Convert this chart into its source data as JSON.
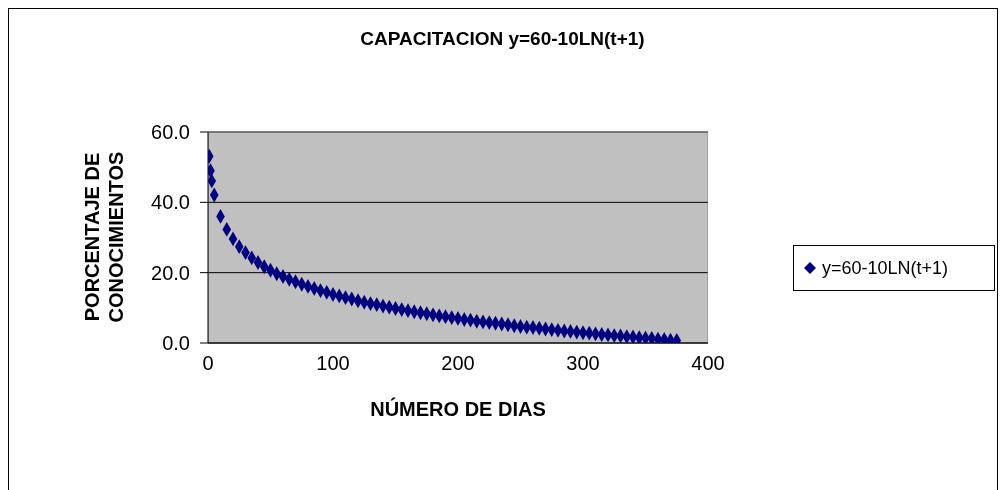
{
  "chart_data": {
    "type": "scatter",
    "title": "CAPACITACION y=60-10LN(t+1)",
    "xlabel": "NÚMERO DE DIAS",
    "ylabel": "PORCENTAJE DE CONOCIMIENTOS",
    "x": [
      1,
      2,
      3,
      5,
      10,
      15,
      20,
      25,
      30,
      35,
      40,
      45,
      50,
      55,
      60,
      65,
      70,
      75,
      80,
      85,
      90,
      95,
      100,
      105,
      110,
      115,
      120,
      125,
      130,
      135,
      140,
      145,
      150,
      155,
      160,
      165,
      170,
      175,
      180,
      185,
      190,
      195,
      200,
      205,
      210,
      215,
      220,
      225,
      230,
      235,
      240,
      245,
      250,
      255,
      260,
      265,
      270,
      275,
      280,
      285,
      290,
      295,
      300,
      305,
      310,
      315,
      320,
      325,
      330,
      335,
      340,
      345,
      350,
      355,
      360,
      365,
      370,
      375
    ],
    "series": [
      {
        "name": "y=60-10LN(t+1)",
        "color": "#000080",
        "values": [
          53.1,
          49.0,
          46.1,
          42.1,
          36.0,
          32.3,
          29.6,
          27.4,
          25.7,
          24.2,
          22.9,
          21.7,
          20.7,
          19.7,
          18.9,
          18.1,
          17.4,
          16.7,
          16.1,
          15.5,
          14.9,
          14.4,
          13.8,
          13.4,
          12.9,
          12.5,
          12.0,
          11.6,
          11.2,
          10.9,
          10.5,
          10.2,
          9.8,
          9.5,
          9.2,
          8.9,
          8.6,
          8.3,
          8.0,
          7.7,
          7.5,
          7.2,
          7.0,
          6.7,
          6.5,
          6.2,
          6.0,
          5.8,
          5.6,
          5.4,
          5.2,
          4.9,
          4.7,
          4.5,
          4.4,
          4.2,
          4.0,
          3.8,
          3.6,
          3.4,
          3.3,
          3.1,
          2.9,
          2.8,
          2.6,
          2.4,
          2.3,
          2.1,
          2.0,
          1.8,
          1.7,
          1.5,
          1.4,
          1.3,
          1.1,
          1.0,
          0.8,
          0.7
        ]
      }
    ],
    "xlim": [
      0,
      400
    ],
    "xticks": [
      0,
      100,
      200,
      300,
      400
    ],
    "ylim": [
      0,
      60
    ],
    "yticks": [
      {
        "value": 0,
        "label": "0.0"
      },
      {
        "value": 20,
        "label": "20.0"
      },
      {
        "value": 40,
        "label": "40.0"
      },
      {
        "value": 60,
        "label": "60.0"
      }
    ],
    "grid": "y",
    "legend": "right",
    "marker": "diamond"
  }
}
